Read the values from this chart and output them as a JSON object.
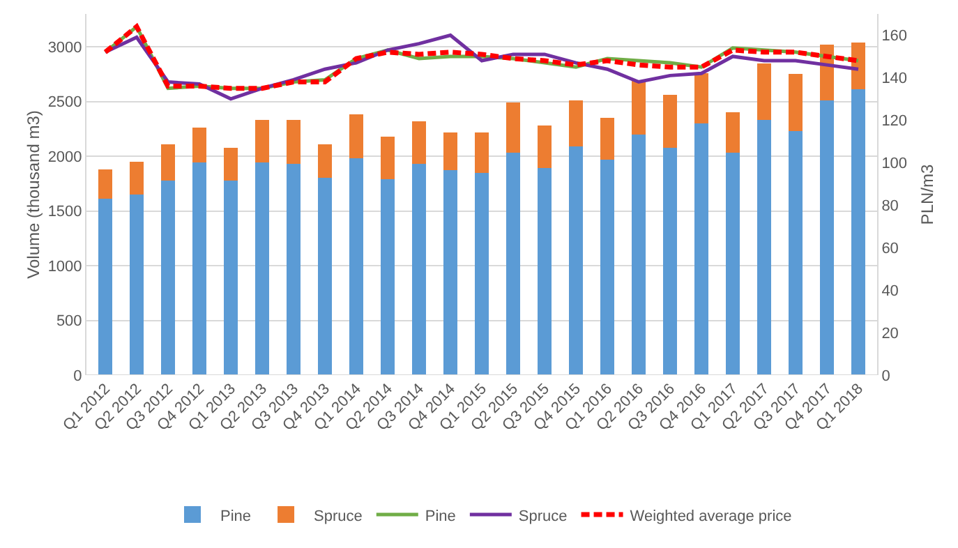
{
  "chart_data": {
    "type": "bar",
    "stacked": true,
    "ylabel": "Volume (thousand m3)",
    "y2label": "PLN/m3",
    "categories": [
      "Q1 2012",
      "Q2 2012",
      "Q3 2012",
      "Q4 2012",
      "Q1 2013",
      "Q2 2013",
      "Q3 2013",
      "Q4 2013",
      "Q1 2014",
      "Q2 2014",
      "Q3 2014",
      "Q4 2014",
      "Q1 2015",
      "Q2 2015",
      "Q3 2015",
      "Q4 2015",
      "Q1 2016",
      "Q2 2016",
      "Q3 2016",
      "Q4 2016",
      "Q1 2017",
      "Q2 2017",
      "Q3 2017",
      "Q4 2017",
      "Q1 2018"
    ],
    "series": [
      {
        "name": "Pine",
        "color": "#5b9bd5",
        "values": [
          1610,
          1650,
          1780,
          1940,
          1780,
          1940,
          1930,
          1800,
          1980,
          1790,
          1930,
          1870,
          1850,
          2030,
          1890,
          2090,
          1970,
          2200,
          2080,
          2300,
          2030,
          2330,
          2230,
          2510,
          2610
        ]
      },
      {
        "name": "Spruce",
        "color": "#ed7d31",
        "values": [
          270,
          300,
          330,
          320,
          300,
          390,
          400,
          310,
          400,
          390,
          390,
          350,
          370,
          460,
          390,
          420,
          380,
          490,
          480,
          460,
          370,
          520,
          520,
          510,
          430
        ]
      },
      {
        "name": "Pine",
        "type": "line",
        "axis": "y2",
        "color": "#70ad47",
        "line_style": "solid",
        "values": [
          152,
          164,
          135,
          136,
          135,
          135,
          138,
          139,
          149,
          153,
          149,
          150,
          150,
          149,
          147,
          145,
          149,
          148,
          147,
          145,
          154,
          153,
          152,
          150,
          148
        ]
      },
      {
        "name": "Spruce",
        "type": "line",
        "axis": "y2",
        "color": "#7030a0",
        "line_style": "solid",
        "values": [
          152,
          159,
          138,
          137,
          130,
          135,
          139,
          144,
          147,
          153,
          156,
          160,
          148,
          151,
          151,
          147,
          144,
          138,
          141,
          142,
          150,
          148,
          148,
          146,
          144
        ]
      },
      {
        "name": "Weighted average price",
        "type": "line",
        "axis": "y2",
        "color": "#ff0000",
        "line_style": "dashed",
        "values": [
          152,
          164,
          136,
          136,
          135,
          135,
          138,
          138,
          149,
          152,
          151,
          152,
          151,
          149,
          148,
          146,
          148,
          146,
          145,
          145,
          153,
          152,
          152,
          150,
          148
        ]
      }
    ],
    "ylim": [
      0,
      3300
    ],
    "yticks": [
      0,
      500,
      1000,
      1500,
      2000,
      2500,
      3000
    ],
    "y2lim": [
      0,
      170
    ],
    "y2ticks": [
      0,
      20,
      40,
      60,
      80,
      100,
      120,
      140,
      160
    ],
    "grid": "y",
    "legend": "bottom",
    "marker": "none"
  }
}
